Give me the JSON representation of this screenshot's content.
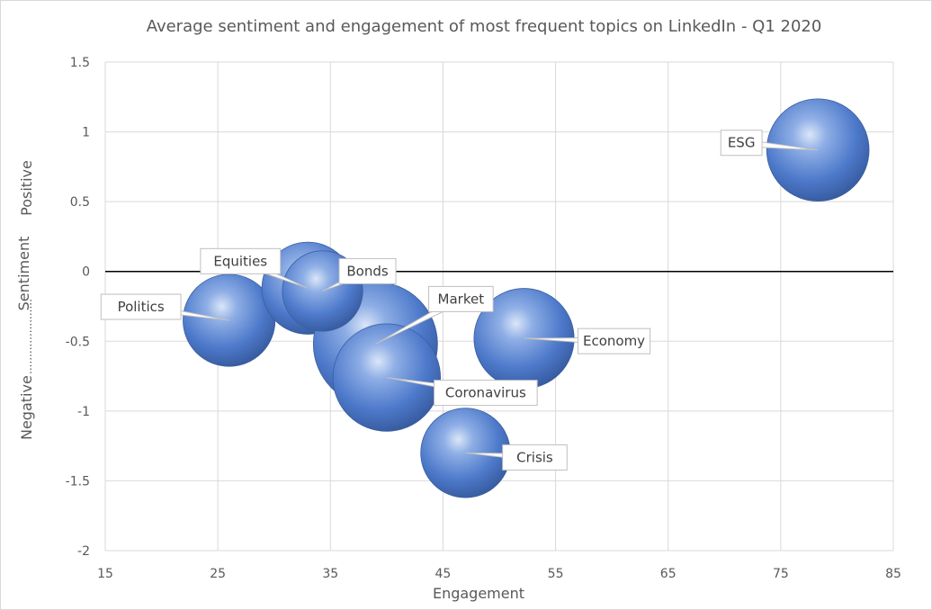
{
  "chart_data": {
    "type": "scatter",
    "subtype": "bubble",
    "title": "Average sentiment and engagement of most frequent topics on LinkedIn - Q1 2020",
    "xlabel": "Engagement",
    "ylabel": "Negative.......................Positive",
    "ylabel_parts": {
      "left": "Negative",
      "dots": "......................",
      "center": "Sentiment",
      "right": "Positive"
    },
    "xlim": [
      15,
      85
    ],
    "ylim": [
      -2,
      1.5
    ],
    "xticks": [
      15,
      25,
      35,
      45,
      55,
      65,
      75,
      85
    ],
    "yticks": [
      1.5,
      1,
      0.5,
      0,
      -0.5,
      -1,
      -1.5,
      -2
    ],
    "ytick_labels": [
      "1.5",
      "1",
      "0.5",
      "0",
      "-0.5",
      "-1",
      "-1.5",
      "-2"
    ],
    "grid": true,
    "zero_line": true,
    "bubble_color": "#4472c4",
    "points": [
      {
        "label": "Equities",
        "x": 33,
        "y": -0.12,
        "size": 0.55
      },
      {
        "label": "Bonds",
        "x": 34.3,
        "y": -0.14,
        "size": 0.42
      },
      {
        "label": "Politics",
        "x": 26,
        "y": -0.35,
        "size": 0.55
      },
      {
        "label": "Market",
        "x": 39,
        "y": -0.52,
        "size": 1.0
      },
      {
        "label": "Coronavirus",
        "x": 40,
        "y": -0.76,
        "size": 0.75
      },
      {
        "label": "Economy",
        "x": 52.2,
        "y": -0.48,
        "size": 0.65
      },
      {
        "label": "Crisis",
        "x": 47,
        "y": -1.3,
        "size": 0.52
      },
      {
        "label": "ESG",
        "x": 78.3,
        "y": 0.87,
        "size": 0.68
      }
    ]
  }
}
